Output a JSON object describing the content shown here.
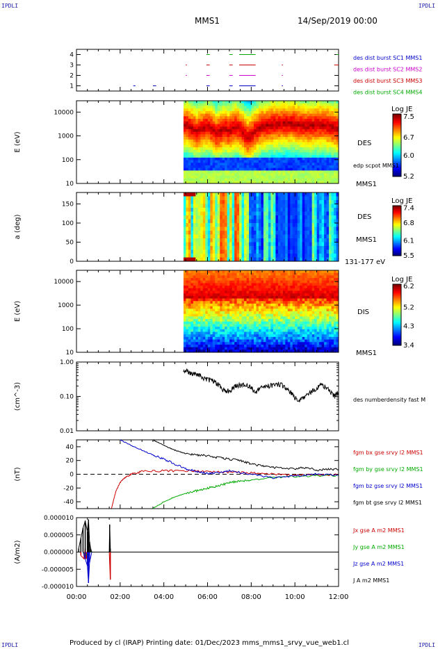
{
  "corners": {
    "top_left": "IPDLI",
    "top_right": "IPDLI",
    "bottom_left": "IPDLI",
    "bottom_right": "IPDLI"
  },
  "header": {
    "spacecraft": "MMS1",
    "date": "14/Sep/2019 00:00"
  },
  "footer": {
    "text": "Produced by cl (IRAP)   Printing date: 01/Dec/2023   mms_mms1_srvy_vue_web1.cl"
  },
  "time_axis": {
    "ticks": [
      "00:00",
      "02:00",
      "04:00",
      "06:00",
      "08:00",
      "10:00",
      "12:00"
    ],
    "range_hours": [
      0,
      12
    ]
  },
  "colors": {
    "mms1": "#0000cc",
    "mms2": "#cc00cc",
    "mms3": "#cc0000",
    "mms4": "#00aa00",
    "bt": "#000000"
  },
  "chart_data": [
    {
      "type": "bar",
      "panel": "burst availability",
      "ylim": [
        0.5,
        4.5
      ],
      "ytick_labels": [
        "1",
        "2",
        "3",
        "4"
      ],
      "series": [
        {
          "name": "des dist burst SC1 MMS1",
          "level": 1,
          "intervals_hours": [
            [
              2.6,
              2.7
            ],
            [
              3.5,
              3.65
            ],
            [
              5.95,
              6.1
            ],
            [
              7.0,
              7.15
            ],
            [
              7.45,
              8.2
            ],
            [
              9.4,
              9.45
            ]
          ]
        },
        {
          "name": "des dist burst SC2 MMS2",
          "level": 2,
          "intervals_hours": [
            [
              5.0,
              5.05
            ],
            [
              5.95,
              6.1
            ],
            [
              7.0,
              7.15
            ],
            [
              7.45,
              8.2
            ],
            [
              9.4,
              9.45
            ]
          ]
        },
        {
          "name": "des dist burst SC3 MMS3",
          "level": 3,
          "intervals_hours": [
            [
              5.0,
              5.05
            ],
            [
              5.95,
              6.1
            ],
            [
              7.0,
              7.15
            ],
            [
              7.45,
              8.2
            ],
            [
              9.4,
              9.45
            ],
            [
              11.8,
              12.0
            ]
          ]
        },
        {
          "name": "des dist burst SC4 MMS4",
          "level": 4,
          "intervals_hours": [
            [
              5.95,
              6.1
            ],
            [
              7.0,
              7.15
            ],
            [
              7.45,
              8.2
            ],
            [
              11.9,
              12.0
            ]
          ]
        }
      ]
    },
    {
      "type": "heatmap",
      "panel": "DES energy spectrogram",
      "ylabel": "E (eV)",
      "yscale": "log",
      "ylim": [
        10,
        30000
      ],
      "ytick_labels": [
        "10",
        "100",
        "1000",
        "10000"
      ],
      "right_labels": [
        "DES",
        "edp scpot MMS1",
        "MMS1"
      ],
      "colorbar": {
        "title": "Log JE",
        "range": [
          5.2,
          7.6
        ],
        "tick_labels": [
          "7.5",
          "6.7",
          "6.0",
          "5.2"
        ]
      },
      "data_start_hours": 4.9,
      "peak_energy_eV": [
        3000,
        1500,
        2500,
        1200,
        2000,
        1500,
        2500,
        800,
        1000,
        2500,
        3000,
        3500,
        2500,
        3000,
        2000
      ],
      "peak_time_hours": [
        5.0,
        5.5,
        6.0,
        6.4,
        6.8,
        7.0,
        7.3,
        7.8,
        8.0,
        8.5,
        9.0,
        9.8,
        10.5,
        11.2,
        12.0
      ]
    },
    {
      "type": "heatmap",
      "panel": "DES pitch angle",
      "ylabel": "a (deg)",
      "ylim": [
        0,
        180
      ],
      "ytick_labels": [
        "0",
        "50",
        "100",
        "150"
      ],
      "right_labels": [
        "DES",
        "MMS1",
        "131-177 eV"
      ],
      "colorbar": {
        "title": "Log JE",
        "range": [
          5.5,
          7.5
        ],
        "tick_labels": [
          "7.4",
          "6.8",
          "6.1",
          "5.5"
        ]
      },
      "data_start_hours": 4.9
    },
    {
      "type": "heatmap",
      "panel": "DIS energy spectrogram",
      "ylabel": "E (eV)",
      "yscale": "log",
      "ylim": [
        10,
        30000
      ],
      "ytick_labels": [
        "10",
        "100",
        "1000",
        "10000"
      ],
      "right_labels": [
        "DIS",
        "MMS1"
      ],
      "colorbar": {
        "title": "Log JE",
        "range": [
          3.4,
          6.3
        ],
        "tick_labels": [
          "6.2",
          "5.2",
          "4.3",
          "3.4"
        ]
      },
      "data_start_hours": 4.9
    },
    {
      "type": "line",
      "panel": "density",
      "ylabel": "(cm^-3)",
      "yscale": "log",
      "ylim": [
        0.01,
        1.0
      ],
      "ytick_labels": [
        "0.01",
        "0.10",
        "1.00"
      ],
      "series": [
        {
          "name": "des numberdensity fast M",
          "x": [
            4.9,
            5.2,
            5.5,
            5.8,
            6.1,
            6.4,
            6.7,
            7.0,
            7.3,
            7.6,
            7.9,
            8.2,
            8.5,
            8.8,
            9.1,
            9.4,
            9.7,
            10.0,
            10.3,
            10.6,
            10.9,
            11.2,
            11.5,
            11.8,
            12.0
          ],
          "y": [
            0.6,
            0.5,
            0.45,
            0.35,
            0.3,
            0.25,
            0.16,
            0.14,
            0.2,
            0.22,
            0.2,
            0.13,
            0.18,
            0.2,
            0.23,
            0.22,
            0.15,
            0.09,
            0.08,
            0.11,
            0.16,
            0.22,
            0.17,
            0.1,
            0.13
          ]
        }
      ]
    },
    {
      "type": "line",
      "panel": "magnetic field",
      "ylabel": "(nT)",
      "ylim": [
        -50,
        50
      ],
      "ytick_labels": [
        "-40",
        "-20",
        "0",
        "20",
        "40"
      ],
      "series": [
        {
          "name": "fgm bx gse srvy l2 MMS1",
          "x": [
            1.6,
            1.8,
            2.0,
            2.2,
            2.5,
            3.0,
            4.0,
            5.0,
            6.0,
            7.0,
            8.0,
            9.0,
            10.0,
            11.0,
            12.0
          ],
          "y": [
            -50,
            -25,
            -12,
            -5,
            0,
            4,
            5,
            5,
            4,
            3,
            2,
            0,
            -1,
            -1,
            -1
          ]
        },
        {
          "name": "fgm by gse srvy l2 MMS1",
          "x": [
            3.5,
            4.0,
            4.5,
            5.0,
            5.5,
            6.0,
            6.5,
            7.0,
            7.5,
            8.0,
            9.0,
            10.0,
            11.0,
            12.0
          ],
          "y": [
            -50,
            -40,
            -33,
            -28,
            -24,
            -20,
            -17,
            -12,
            -10,
            -8,
            -5,
            -3,
            -2,
            -2
          ]
        },
        {
          "name": "fgm bz gse srvy l2 MMS1",
          "x": [
            2.0,
            2.5,
            3.0,
            3.5,
            4.0,
            4.5,
            5.0,
            5.5,
            6.0,
            6.5,
            7.0,
            8.0,
            9.0,
            10.0,
            11.0,
            12.0
          ],
          "y": [
            50,
            42,
            35,
            28,
            22,
            15,
            8,
            4,
            1,
            2,
            5,
            0,
            -5,
            -2,
            0,
            -1
          ]
        },
        {
          "name": "fgm bt gse srvy l2 MMS1",
          "x": [
            3.5,
            4.0,
            4.5,
            5.0,
            5.5,
            6.0,
            6.5,
            7.0,
            7.5,
            8.0,
            8.5,
            9.0,
            10.0,
            10.5,
            11.0,
            11.5,
            12.0
          ],
          "y": [
            50,
            42,
            35,
            30,
            28,
            27,
            24,
            22,
            20,
            15,
            12,
            10,
            8,
            10,
            6,
            7,
            7
          ]
        }
      ]
    },
    {
      "type": "line",
      "panel": "current density",
      "ylabel": "(A/m2)",
      "ylim": [
        -1e-05,
        1e-05
      ],
      "ytick_labels": [
        "-0.000010",
        "-0.000005",
        "0.000000",
        "0.000005",
        "0.000010"
      ],
      "series": [
        {
          "name": "Jx gse A m2 MMS1",
          "x": [
            0.2,
            0.35,
            0.4,
            0.45,
            0.5,
            1.5,
            1.55
          ],
          "y": [
            -1e-06,
            -2e-06,
            1e-06,
            -2e-06,
            0.0,
            0.0,
            -8e-06
          ]
        },
        {
          "name": "Jy gse A m2 MMS1",
          "x": [
            0.3,
            0.5,
            0.6,
            1.0
          ],
          "y": [
            0.0,
            -1e-06,
            0.0,
            0.0
          ]
        },
        {
          "name": "Jz gse A m2 MMS1",
          "x": [
            0.3,
            0.4,
            0.5,
            0.55,
            0.6,
            0.7
          ],
          "y": [
            0.0,
            -2e-06,
            -4e-06,
            -9e-06,
            -3e-06,
            0.0
          ]
        },
        {
          "name": "J A m2 MMS1",
          "x": [
            0.1,
            0.2,
            0.3,
            0.4,
            0.5,
            0.55,
            0.6,
            0.65,
            0.7,
            1.5,
            1.52,
            1.55
          ],
          "y": [
            1e-06,
            4e-06,
            7e-06,
            9e-06,
            6e-06,
            9.5e-06,
            3e-06,
            1e-06,
            0.0,
            0.0,
            8e-06,
            1e-06
          ]
        }
      ]
    }
  ]
}
